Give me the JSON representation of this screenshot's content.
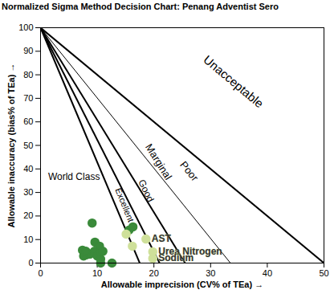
{
  "chart_data": {
    "type": "scatter",
    "title": "Normalized Sigma Method Decision Chart: Penang Adventist Sero",
    "x_label": "Allowable imprecision (CV% of TEa)",
    "y_label": "Allowable inaccuracy (bias% of TEa)",
    "xlim": [
      0,
      50
    ],
    "ylim": [
      0,
      100
    ],
    "xticks": [
      0,
      10,
      20,
      30,
      40,
      50
    ],
    "yticks": [
      0,
      10,
      20,
      30,
      40,
      50,
      60,
      70,
      80,
      90,
      100
    ],
    "grid": false,
    "decision_lines": [
      {
        "x_intercept": 17.5,
        "y_intercept": 100,
        "line_style": "thick"
      },
      {
        "x_intercept": 21,
        "y_intercept": 100,
        "line_style": "thick"
      },
      {
        "x_intercept": 25.5,
        "y_intercept": 100,
        "line_style": "thick"
      },
      {
        "x_intercept": 33.5,
        "y_intercept": 100,
        "line_style": "thin"
      },
      {
        "x_intercept": 50,
        "y_intercept": 100,
        "line_style": "thick"
      }
    ],
    "annotations": [
      {
        "text": "World Class",
        "x": 5.9,
        "y": 36.5
      },
      {
        "text": "Excellent",
        "x": 14.8,
        "y": 24.6
      },
      {
        "text": "Good",
        "x": 18.6,
        "y": 30.7
      },
      {
        "text": "Marginal",
        "x": 20.8,
        "y": 43
      },
      {
        "text": "Poor",
        "x": 26.2,
        "y": 39
      },
      {
        "text": "Unacceptable",
        "x": 34,
        "y": 77
      }
    ],
    "series": [
      {
        "color": "#3a8a3a",
        "marker": "circle",
        "x": [
          9.1,
          15.6,
          16.3,
          7.4,
          7.6,
          8.1,
          8.7,
          9.6,
          9.5,
          10.0,
          10.5,
          10.6,
          10.6,
          10.4,
          12.6,
          11.0,
          8.0
        ],
        "values": [
          17,
          14,
          15.4,
          5.5,
          3,
          3.5,
          3.8,
          8.9,
          5,
          3,
          4.4,
          0,
          1.7,
          7.2,
          0,
          5,
          5
        ]
      },
      {
        "color": "#cfe09a",
        "marker": "circle",
        "x": [
          15.1,
          16.2,
          18.6,
          19.8,
          19.8
        ],
        "values": [
          12.3,
          7.2,
          10.2,
          4.8,
          2.0
        ],
        "labels": [
          null,
          null,
          "AST",
          "Urea Nitrogen",
          "Sodium"
        ]
      }
    ]
  }
}
